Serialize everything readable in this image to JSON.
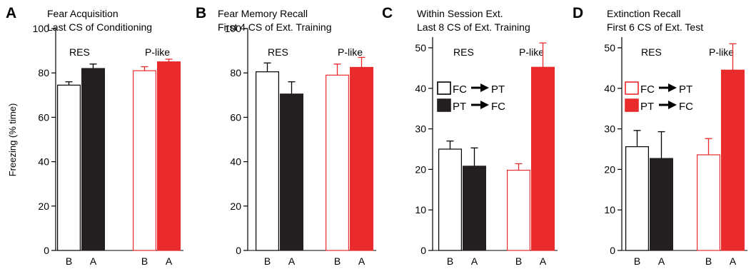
{
  "ylabel": "Freezing (% time)",
  "colors": {
    "black_fill": "#231f20",
    "red": "#ea2b2b",
    "white": "#ffffff"
  },
  "chart_data": [
    {
      "type": "bar",
      "panel": "A",
      "title": "Fear Acquisition",
      "subtitle": "Last CS of Conditioning",
      "ylim": [
        0,
        100
      ],
      "yticks": [
        "0",
        "20",
        "40",
        "60",
        "80",
        "100"
      ],
      "categories": [
        "B",
        "A",
        "B",
        "A"
      ],
      "groups": [
        "RES",
        "P-like"
      ],
      "values": [
        74.5,
        82,
        81,
        85
      ],
      "errors": [
        1.5,
        2,
        1.8,
        1.2
      ],
      "legend": []
    },
    {
      "type": "bar",
      "panel": "B",
      "title": "Fear Memory Recall",
      "subtitle": "First 4 CS of Ext. Training",
      "ylim": [
        0,
        100
      ],
      "yticks": [
        "0",
        "20",
        "40",
        "60",
        "80",
        "100"
      ],
      "categories": [
        "B",
        "A",
        "B",
        "A"
      ],
      "groups": [
        "RES",
        "P-like"
      ],
      "values": [
        80.5,
        70.5,
        79,
        82.5
      ],
      "errors": [
        4,
        5.5,
        5,
        4.5
      ],
      "legend": []
    },
    {
      "type": "bar",
      "panel": "C",
      "title": "Within Session Ext.",
      "subtitle": "Last 8 CS of Ext. Training",
      "ylim": [
        0,
        55
      ],
      "yticks": [
        "0",
        "10",
        "20",
        "30",
        "40",
        "50"
      ],
      "categories": [
        "B",
        "A",
        "B",
        "A"
      ],
      "groups": [
        "RES",
        "P-like"
      ],
      "values": [
        25,
        20.8,
        19.8,
        45.2
      ],
      "errors": [
        2,
        4.5,
        1.6,
        6
      ],
      "legend": [
        {
          "from": "FC",
          "to": "PT",
          "style": "white"
        },
        {
          "from": "PT",
          "to": "FC",
          "style": "black"
        }
      ]
    },
    {
      "type": "bar",
      "panel": "D",
      "title": "Extinction Recall",
      "subtitle": "First 6 CS of Ext. Test",
      "ylim": [
        0,
        55
      ],
      "yticks": [
        "0",
        "10",
        "20",
        "30",
        "40",
        "50"
      ],
      "categories": [
        "B",
        "A",
        "B",
        "A"
      ],
      "groups": [
        "RES",
        "P-like"
      ],
      "values": [
        25.6,
        22.7,
        23.6,
        44.5
      ],
      "errors": [
        4,
        6.6,
        4,
        6.5
      ],
      "legend": [
        {
          "from": "FC",
          "to": "PT",
          "style": "red-outline"
        },
        {
          "from": "PT",
          "to": "FC",
          "style": "red"
        }
      ]
    }
  ]
}
